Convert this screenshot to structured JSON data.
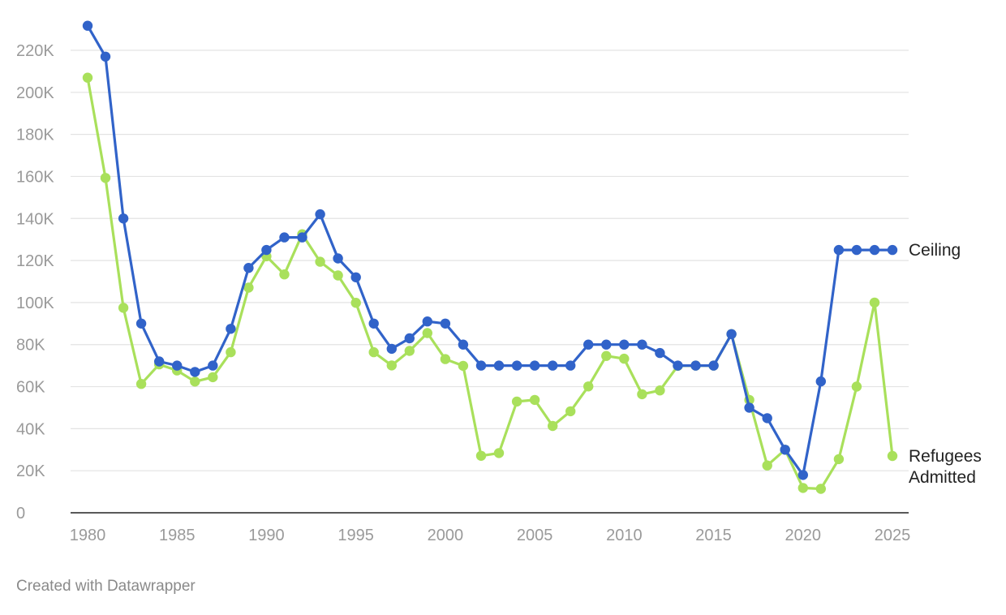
{
  "chart_data": {
    "type": "line",
    "title": "",
    "xlabel": "",
    "ylabel": "",
    "xlim": [
      1980,
      2025
    ],
    "ylim": [
      0,
      230000
    ],
    "grid": true,
    "x_ticks": [
      {
        "value": 1980,
        "label": "1980"
      },
      {
        "value": 1985,
        "label": "1985"
      },
      {
        "value": 1990,
        "label": "1990"
      },
      {
        "value": 1995,
        "label": "1995"
      },
      {
        "value": 2000,
        "label": "2000"
      },
      {
        "value": 2005,
        "label": "2005"
      },
      {
        "value": 2010,
        "label": "2010"
      },
      {
        "value": 2015,
        "label": "2015"
      },
      {
        "value": 2020,
        "label": "2020"
      },
      {
        "value": 2025,
        "label": "2025"
      }
    ],
    "y_ticks": [
      {
        "value": 0,
        "label": "0"
      },
      {
        "value": 20000,
        "label": "20K"
      },
      {
        "value": 40000,
        "label": "40K"
      },
      {
        "value": 60000,
        "label": "60K"
      },
      {
        "value": 80000,
        "label": "80K"
      },
      {
        "value": 100000,
        "label": "100K"
      },
      {
        "value": 120000,
        "label": "120K"
      },
      {
        "value": 140000,
        "label": "140K"
      },
      {
        "value": 160000,
        "label": "160K"
      },
      {
        "value": 180000,
        "label": "180K"
      },
      {
        "value": 200000,
        "label": "200K"
      },
      {
        "value": 220000,
        "label": "220K"
      }
    ],
    "x": [
      1980,
      1981,
      1982,
      1983,
      1984,
      1985,
      1986,
      1987,
      1988,
      1989,
      1990,
      1991,
      1992,
      1993,
      1994,
      1995,
      1996,
      1997,
      1998,
      1999,
      2000,
      2001,
      2002,
      2003,
      2004,
      2005,
      2006,
      2007,
      2008,
      2009,
      2010,
      2011,
      2012,
      2013,
      2014,
      2015,
      2016,
      2017,
      2018,
      2019,
      2020,
      2021,
      2022,
      2023,
      2024,
      2025
    ],
    "series": [
      {
        "key": "ceiling",
        "label_lines": [
          "Ceiling"
        ],
        "color": "#3163c9",
        "values": [
          231700,
          217000,
          140000,
          90000,
          72000,
          70000,
          67000,
          70000,
          87500,
          116500,
          125000,
          131000,
          131000,
          142000,
          121000,
          112000,
          90000,
          78000,
          83000,
          91000,
          90000,
          80000,
          70000,
          70000,
          70000,
          70000,
          70000,
          70000,
          80000,
          80000,
          80000,
          80000,
          76000,
          70000,
          70000,
          70000,
          85000,
          50000,
          45000,
          30000,
          18000,
          62500,
          125000,
          125000,
          125000,
          125000
        ]
      },
      {
        "key": "admitted",
        "label_lines": [
          "Refugees",
          "Admitted"
        ],
        "color": "#a9e05b",
        "values": [
          207000,
          159300,
          97500,
          61300,
          70600,
          67700,
          62400,
          64500,
          76400,
          107100,
          122000,
          113400,
          132500,
          119400,
          112900,
          99900,
          76400,
          70100,
          77000,
          85500,
          73100,
          69900,
          27100,
          28400,
          52900,
          53700,
          41300,
          48300,
          60100,
          74600,
          73300,
          56400,
          58200,
          69900,
          70000,
          70000,
          85000,
          53700,
          22500,
          30000,
          11800,
          11400,
          25500,
          60000,
          100000,
          27000
        ]
      }
    ]
  },
  "footer": {
    "credit": "Created with Datawrapper"
  }
}
